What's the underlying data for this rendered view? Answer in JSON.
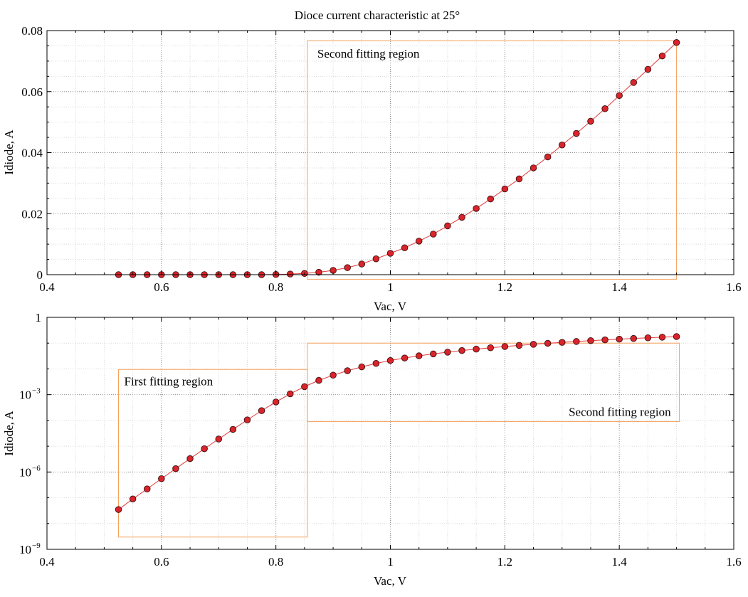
{
  "title": "Dioce current characteristic at 25°",
  "chart_data": [
    {
      "type": "line",
      "xlabel": "Vac, V",
      "ylabel": "Idiode, A",
      "xlim": [
        0.4,
        1.6
      ],
      "ylim": [
        0,
        0.08
      ],
      "yscale": "linear",
      "grid": true,
      "x_ticks": [
        0.4,
        0.6,
        0.8,
        1.0,
        1.2,
        1.4,
        1.6
      ],
      "x_tick_labels": [
        "0.4",
        "0.6",
        "0.8",
        "1",
        "1.2",
        "1.4",
        "1.6"
      ],
      "y_ticks": [
        0,
        0.02,
        0.04,
        0.06,
        0.08
      ],
      "y_tick_labels": [
        "0",
        "0.02",
        "0.04",
        "0.06",
        "0.08"
      ],
      "series": [
        {
          "x": [
            0.525,
            0.55,
            0.575,
            0.6,
            0.625,
            0.65,
            0.675,
            0.7,
            0.725,
            0.75,
            0.775,
            0.8,
            0.825,
            0.85,
            0.875,
            0.9,
            0.925,
            0.95,
            0.975,
            1.0,
            1.025,
            1.05,
            1.075,
            1.1,
            1.125,
            1.15,
            1.175,
            1.2,
            1.225,
            1.25,
            1.275,
            1.3,
            1.325,
            1.35,
            1.375,
            1.4,
            1.425,
            1.45,
            1.475,
            1.5
          ],
          "y": [
            0,
            0,
            0,
            0,
            0,
            0,
            0,
            0,
            0,
            0,
            1e-05,
            6e-05,
            0.0002,
            0.0004,
            0.0008,
            0.0014,
            0.0023,
            0.0035,
            0.0052,
            0.007,
            0.0088,
            0.011,
            0.0133,
            0.016,
            0.0188,
            0.0217,
            0.0248,
            0.0281,
            0.0314,
            0.035,
            0.0386,
            0.0425,
            0.0463,
            0.0503,
            0.0544,
            0.0587,
            0.063,
            0.0673,
            0.0717,
            0.0761
          ]
        }
      ],
      "annotations": [
        {
          "text": "Second fitting region",
          "x0": 0.855,
          "x1": 1.5,
          "y0": -0.0015,
          "y1": 0.0767
        }
      ]
    },
    {
      "type": "line",
      "xlabel": "Vac, V",
      "ylabel": "Idiode, A",
      "xlim": [
        0.4,
        1.6
      ],
      "ylim": [
        1e-09,
        1
      ],
      "yscale": "log",
      "grid": true,
      "x_ticks": [
        0.4,
        0.6,
        0.8,
        1.0,
        1.2,
        1.4,
        1.6
      ],
      "x_tick_labels": [
        "0.4",
        "0.6",
        "0.8",
        "1",
        "1.2",
        "1.4",
        "1.6"
      ],
      "y_ticks": [
        1e-09,
        1e-06,
        0.001,
        1
      ],
      "y_tick_labels": [
        {
          "base": "10",
          "exp": "−9"
        },
        {
          "base": "10",
          "exp": "−6"
        },
        {
          "base": "10",
          "exp": "−3"
        },
        {
          "base": "1",
          "exp": ""
        }
      ],
      "series": [
        {
          "x": [
            0.525,
            0.55,
            0.575,
            0.6,
            0.625,
            0.65,
            0.675,
            0.7,
            0.725,
            0.75,
            0.775,
            0.8,
            0.825,
            0.85,
            0.875,
            0.9,
            0.925,
            0.95,
            0.975,
            1.0,
            1.025,
            1.05,
            1.075,
            1.1,
            1.125,
            1.15,
            1.175,
            1.2,
            1.225,
            1.25,
            1.275,
            1.3,
            1.325,
            1.35,
            1.375,
            1.4,
            1.425,
            1.45,
            1.475,
            1.5
          ],
          "y": [
            3.5e-08,
            9e-08,
            2.2e-07,
            5.5e-07,
            1.35e-06,
            3.3e-06,
            8e-06,
            1.9e-05,
            4.5e-05,
            0.000105,
            0.00024,
            0.00052,
            0.00108,
            0.00205,
            0.0036,
            0.0057,
            0.0085,
            0.012,
            0.0163,
            0.0212,
            0.0265,
            0.0322,
            0.0382,
            0.0447,
            0.0515,
            0.0586,
            0.066,
            0.0737,
            0.0817,
            0.09,
            0.0986,
            0.107,
            0.116,
            0.125,
            0.134,
            0.143,
            0.152,
            0.161,
            0.17,
            0.18
          ]
        }
      ],
      "annotations": [
        {
          "text": "First fitting region",
          "x0": 0.525,
          "x1": 0.855,
          "y0": 3e-09,
          "y1": 0.0095
        },
        {
          "text": "Second fitting region",
          "x0": 0.855,
          "x1": 1.505,
          "y0": 9e-05,
          "y1": 0.1
        }
      ]
    }
  ]
}
